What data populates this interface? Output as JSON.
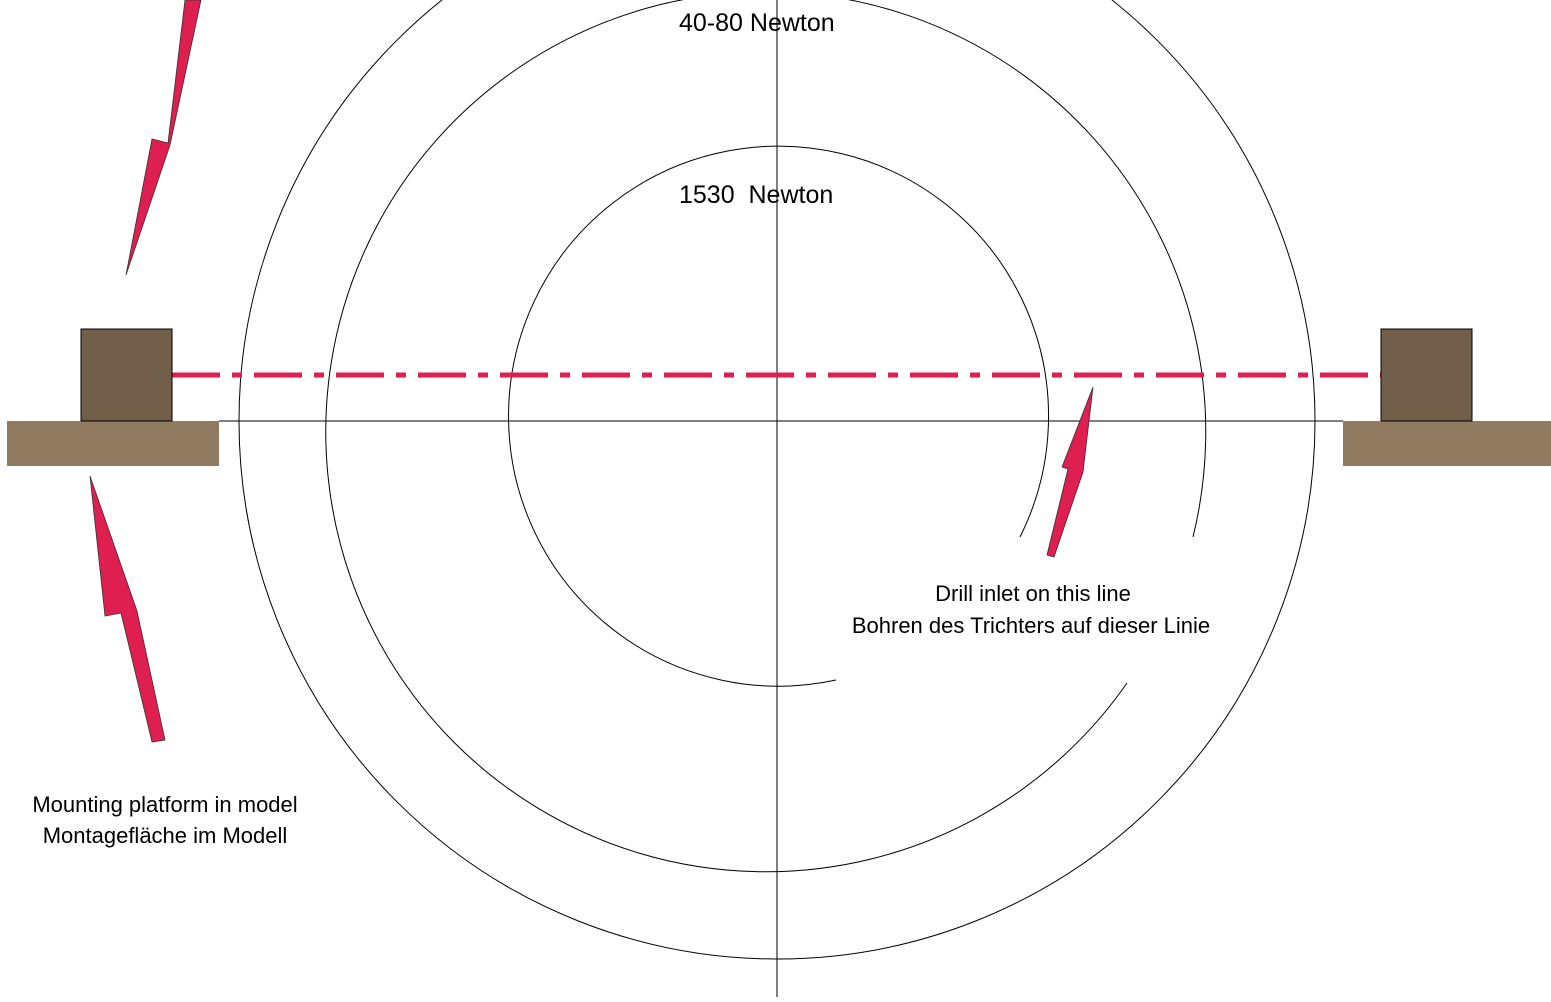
{
  "colors": {
    "base_plate": "#917c62",
    "mount_block": "#725f4a",
    "arrow": "#de1f4f",
    "dash_line": "#de1f4f",
    "lines": "#000000",
    "background": "#ffffff"
  },
  "labels": {
    "outer_force": "40-80 Newton",
    "inner_force": "1530  Newton",
    "drill_line_en": "Drill inlet on this line",
    "drill_line_de": "Bohren des Trichters auf dieser Linie",
    "mounting_en": "Mounting platform in model",
    "mounting_de": "Montagefläche im Modell"
  }
}
